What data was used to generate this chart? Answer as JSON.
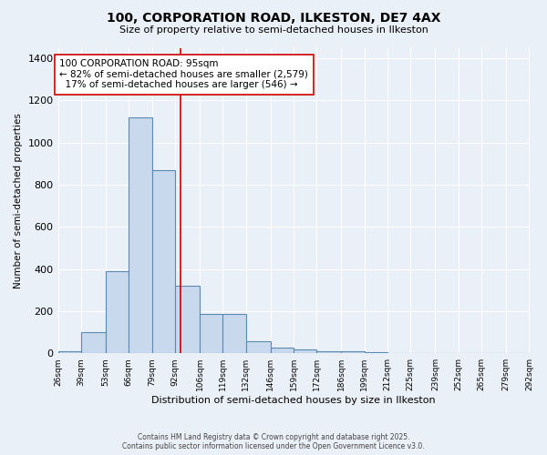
{
  "title_line1": "100, CORPORATION ROAD, ILKESTON, DE7 4AX",
  "title_line2": "Size of property relative to semi-detached houses in Ilkeston",
  "xlabel": "Distribution of semi-detached houses by size in Ilkeston",
  "ylabel": "Number of semi-detached properties",
  "bin_edges": [
    26,
    39,
    53,
    66,
    79,
    92,
    106,
    119,
    132,
    146,
    159,
    172,
    186,
    199,
    212,
    225,
    239,
    252,
    265,
    279,
    292
  ],
  "bar_heights": [
    10,
    100,
    390,
    1120,
    870,
    320,
    185,
    185,
    55,
    25,
    20,
    10,
    10,
    5,
    0,
    0,
    0,
    0,
    0,
    0
  ],
  "bar_color": "#c9d9ed",
  "bar_edge_color": "#5b8ab0",
  "property_size": 95,
  "red_line_color": "#cc0000",
  "annotation_text": "100 CORPORATION ROAD: 95sqm\n← 82% of semi-detached houses are smaller (2,579)\n  17% of semi-detached houses are larger (546) →",
  "annotation_box_color": "white",
  "annotation_box_edge": "#cc0000",
  "ylim": [
    0,
    1450
  ],
  "yticks": [
    0,
    200,
    400,
    600,
    800,
    1000,
    1200,
    1400
  ],
  "background_color": "#eaf0f8",
  "footer_line1": "Contains HM Land Registry data © Crown copyright and database right 2025.",
  "footer_line2": "Contains public sector information licensed under the Open Government Licence v3.0.",
  "grid_color": "white"
}
